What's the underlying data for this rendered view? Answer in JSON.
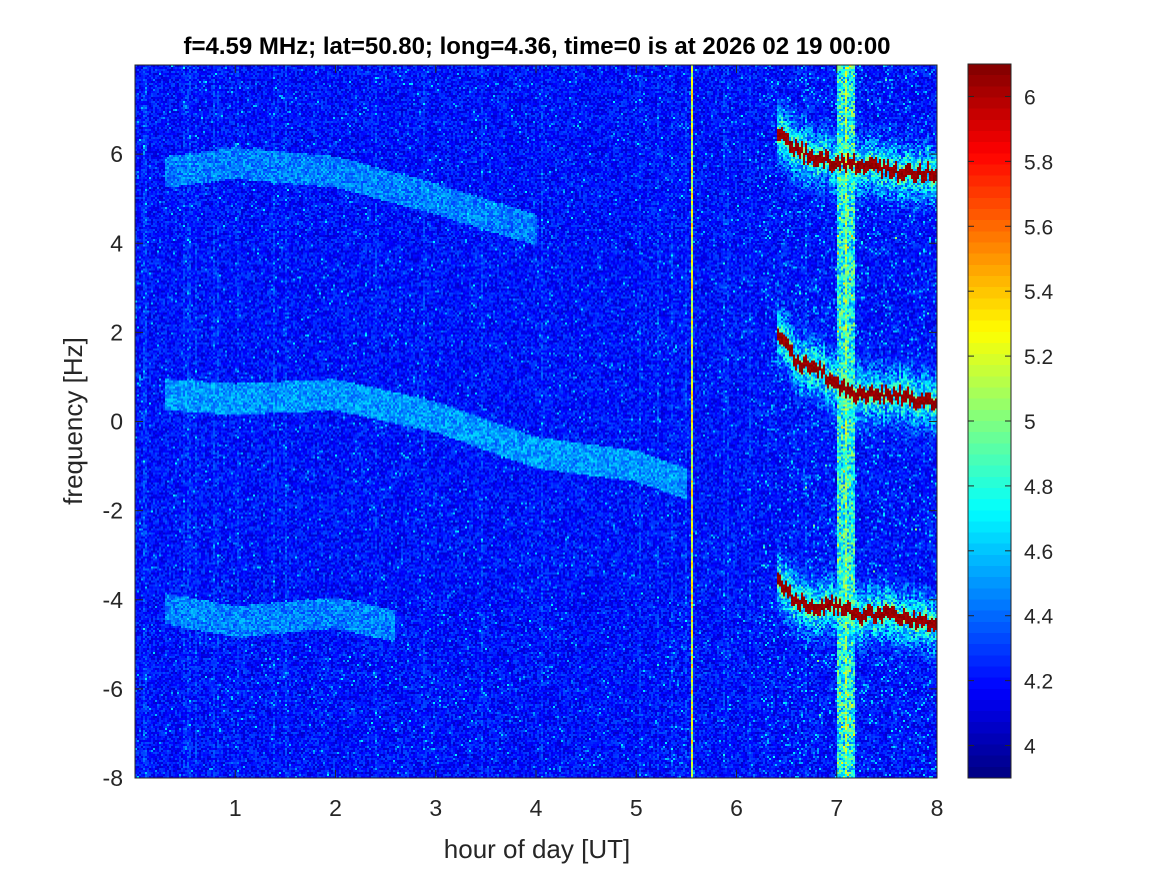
{
  "chart_data": {
    "type": "heatmap",
    "title": "f=4.59 MHz;  lat=50.80; long=4.36, time=0 is at 2026 02 19 00:00",
    "xlabel": "hour of day [UT]",
    "ylabel": "frequency [Hz]",
    "xlim": [
      0,
      8
    ],
    "ylim": [
      -8,
      8
    ],
    "x_ticks": [
      "1",
      "2",
      "3",
      "4",
      "5",
      "6",
      "7",
      "8"
    ],
    "y_ticks": [
      "-8",
      "-6",
      "-4",
      "-2",
      "0",
      "2",
      "4",
      "6"
    ],
    "colorbar": {
      "colormap": "jet",
      "range": [
        3.9,
        6.1
      ],
      "ticks": [
        "4",
        "4.2",
        "4.4",
        "4.6",
        "4.8",
        "5",
        "5.2",
        "5.4",
        "5.6",
        "5.8",
        "6"
      ]
    },
    "background_level": 4.2,
    "vertical_streaks": [
      {
        "hour": 5.55,
        "level": 5.2
      },
      {
        "hour": 7.1,
        "level": 5.0
      }
    ],
    "echo_traces": [
      {
        "name": "upper",
        "hours": [
          6.4,
          6.6,
          6.8,
          7.0,
          7.2,
          7.4,
          7.6,
          7.8,
          8.0
        ],
        "freq_hz": [
          6.5,
          6.1,
          5.9,
          5.8,
          5.8,
          5.7,
          5.6,
          5.6,
          5.6
        ],
        "level": 6.0
      },
      {
        "name": "middle",
        "hours": [
          6.4,
          6.6,
          6.8,
          7.0,
          7.2,
          7.4,
          7.6,
          7.8,
          8.0
        ],
        "freq_hz": [
          2.0,
          1.3,
          1.2,
          0.8,
          0.6,
          0.6,
          0.6,
          0.5,
          0.4
        ],
        "level": 6.0
      },
      {
        "name": "lower",
        "hours": [
          6.4,
          6.6,
          6.8,
          7.0,
          7.2,
          7.4,
          7.6,
          7.8,
          8.0
        ],
        "freq_hz": [
          -3.6,
          -4.0,
          -4.2,
          -4.1,
          -4.4,
          -4.3,
          -4.4,
          -4.5,
          -4.5
        ],
        "level": 6.0
      }
    ],
    "faint_arcs": [
      {
        "name": "faint-arc-upper",
        "hours": [
          0.3,
          1.0,
          2.0,
          3.0,
          4.0
        ],
        "freq_hz": [
          5.6,
          5.8,
          5.6,
          5.0,
          4.3
        ],
        "level": 4.45
      },
      {
        "name": "faint-arc-center",
        "hours": [
          0.3,
          1.0,
          2.0,
          3.0,
          4.0,
          5.0,
          5.5
        ],
        "freq_hz": [
          0.6,
          0.5,
          0.6,
          0.1,
          -0.7,
          -1.0,
          -1.4
        ],
        "level": 4.5
      },
      {
        "name": "faint-arc-lower",
        "hours": [
          0.3,
          1.0,
          2.0,
          2.6
        ],
        "freq_hz": [
          -4.2,
          -4.5,
          -4.3,
          -4.6
        ],
        "level": 4.45
      }
    ],
    "grid": false,
    "legend": "none"
  }
}
